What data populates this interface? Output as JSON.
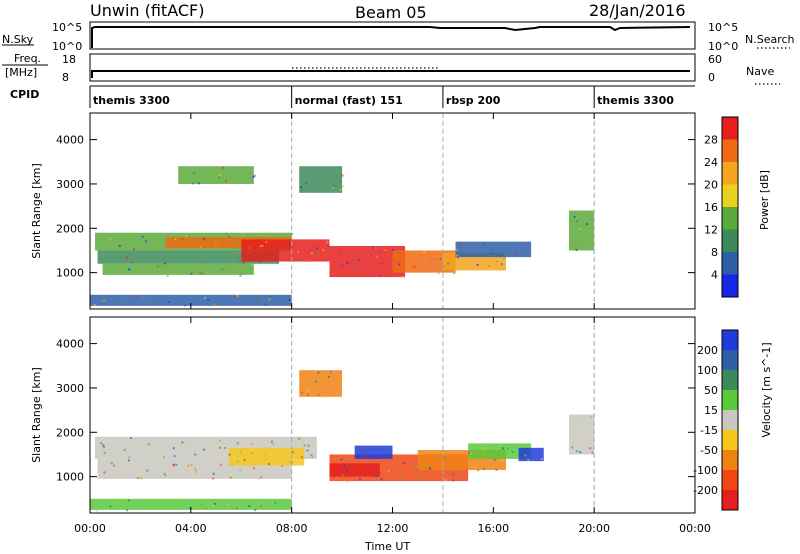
{
  "header": {
    "station": "Unwin (fitACF)",
    "beam": "Beam 05",
    "date": "28/Jan/2016"
  },
  "top_panels": {
    "nsky_label": "N.Sky",
    "nsky_ticks": [
      "10^5",
      "10^0"
    ],
    "nsearch_label": "N.Search",
    "nsearch_ticks": [
      "10^5",
      "10^0"
    ],
    "freq_label": "Freq.",
    "freq_unit": "[MHz]",
    "freq_ticks": [
      "18",
      "8"
    ],
    "nave_label": "Nave",
    "nave_ticks": [
      "60",
      "0"
    ],
    "cpid_label": "CPID",
    "cpid_segments": [
      {
        "name": "themis 3300",
        "start_h": 0,
        "end_h": 8
      },
      {
        "name": "normal (fast) 151",
        "start_h": 8,
        "end_h": 14
      },
      {
        "name": "rbsp 200",
        "start_h": 14,
        "end_h": 20
      },
      {
        "name": "themis 3300",
        "start_h": 20,
        "end_h": 24
      }
    ]
  },
  "chart_data": [
    {
      "type": "heatmap",
      "panel": "power",
      "ylabel": "Slant Range [km]",
      "xlabel": "",
      "x_ticks": [
        "00:00",
        "04:00",
        "08:00",
        "12:00",
        "16:00",
        "20:00",
        "00:00"
      ],
      "y_ticks": [
        "1000",
        "2000",
        "3000",
        "4000"
      ],
      "xlim_hours": [
        0,
        24
      ],
      "ylim_km": [
        180,
        4600
      ],
      "colorbar": {
        "label": "Power [dB]",
        "ticks": [
          "4",
          "8",
          "12",
          "16",
          "20",
          "24",
          "28"
        ],
        "colors": [
          "#1428e6",
          "#2e5fa8",
          "#3c8a5a",
          "#5aaa3c",
          "#e8d21e",
          "#f5a51e",
          "#f06a14",
          "#e61e1e"
        ]
      },
      "regions": [
        {
          "x0": 0.2,
          "x1": 8.0,
          "r0": 1500,
          "r1": 1900,
          "level": "#5aaa3c"
        },
        {
          "x0": 0.3,
          "x1": 7.5,
          "r0": 1200,
          "r1": 1500,
          "level": "#3c8a5a"
        },
        {
          "x0": 0.5,
          "x1": 6.5,
          "r0": 950,
          "r1": 1200,
          "level": "#5aaa3c"
        },
        {
          "x0": 3.0,
          "x1": 8.0,
          "r0": 1550,
          "r1": 1800,
          "level": "#f06a14"
        },
        {
          "x0": 6.0,
          "x1": 9.5,
          "r0": 1250,
          "r1": 1750,
          "level": "#e61e1e"
        },
        {
          "x0": 9.5,
          "x1": 12.5,
          "r0": 900,
          "r1": 1600,
          "level": "#e61e1e"
        },
        {
          "x0": 12.0,
          "x1": 14.5,
          "r0": 1000,
          "r1": 1500,
          "level": "#f06a14"
        },
        {
          "x0": 14.0,
          "x1": 16.5,
          "r0": 1050,
          "r1": 1450,
          "level": "#f5a51e"
        },
        {
          "x0": 14.5,
          "x1": 17.5,
          "r0": 1350,
          "r1": 1700,
          "level": "#2e5fa8"
        },
        {
          "x0": 8.3,
          "x1": 10.0,
          "r0": 2800,
          "r1": 3400,
          "level": "#3c8a5a"
        },
        {
          "x0": 3.5,
          "x1": 6.5,
          "r0": 3000,
          "r1": 3400,
          "level": "#5aaa3c"
        },
        {
          "x0": 19.0,
          "x1": 20.0,
          "r0": 1500,
          "r1": 2400,
          "level": "#5aaa3c"
        },
        {
          "x0": 0.0,
          "x1": 8.0,
          "r0": 250,
          "r1": 500,
          "level": "#2e5fa8"
        }
      ]
    },
    {
      "type": "heatmap",
      "panel": "velocity",
      "ylabel": "Slant Range [km]",
      "xlabel": "Time UT",
      "x_ticks": [
        "00:00",
        "04:00",
        "08:00",
        "12:00",
        "16:00",
        "20:00",
        "00:00"
      ],
      "y_ticks": [
        "1000",
        "2000",
        "3000",
        "4000"
      ],
      "xlim_hours": [
        0,
        24
      ],
      "ylim_km": [
        180,
        4600
      ],
      "colorbar": {
        "label": "Velocity [m s^-1]",
        "ticks": [
          "200",
          "100",
          "50",
          "15",
          "-15",
          "-50",
          "-100",
          "-200"
        ],
        "colors": [
          "#1e3cdc",
          "#2e5fa8",
          "#3c8a5a",
          "#5ac83c",
          "#c8c8c0",
          "#f5c81e",
          "#f08214",
          "#f04614",
          "#e61e1e"
        ]
      },
      "regions": [
        {
          "x0": 0.2,
          "x1": 9.0,
          "r0": 1400,
          "r1": 1900,
          "level": "#c8c8c0"
        },
        {
          "x0": 0.3,
          "x1": 8.0,
          "r0": 950,
          "r1": 1400,
          "level": "#c8c8c0"
        },
        {
          "x0": 5.5,
          "x1": 8.5,
          "r0": 1250,
          "r1": 1650,
          "level": "#f5c81e"
        },
        {
          "x0": 9.5,
          "x1": 15.0,
          "r0": 900,
          "r1": 1500,
          "level": "#f04614"
        },
        {
          "x0": 9.5,
          "x1": 11.5,
          "r0": 1000,
          "r1": 1300,
          "level": "#e61e1e"
        },
        {
          "x0": 13.0,
          "x1": 16.5,
          "r0": 1150,
          "r1": 1600,
          "level": "#f08214"
        },
        {
          "x0": 15.0,
          "x1": 17.5,
          "r0": 1400,
          "r1": 1750,
          "level": "#5ac83c"
        },
        {
          "x0": 10.5,
          "x1": 12.0,
          "r0": 1400,
          "r1": 1700,
          "level": "#1e3cdc"
        },
        {
          "x0": 17.0,
          "x1": 18.0,
          "r0": 1350,
          "r1": 1650,
          "level": "#1e3cdc"
        },
        {
          "x0": 8.3,
          "x1": 10.0,
          "r0": 2800,
          "r1": 3400,
          "level": "#f08214"
        },
        {
          "x0": 19.0,
          "x1": 20.0,
          "r0": 1500,
          "r1": 2400,
          "level": "#c8c8c0"
        },
        {
          "x0": 0.0,
          "x1": 8.0,
          "r0": 250,
          "r1": 500,
          "level": "#5ac83c"
        }
      ]
    }
  ]
}
